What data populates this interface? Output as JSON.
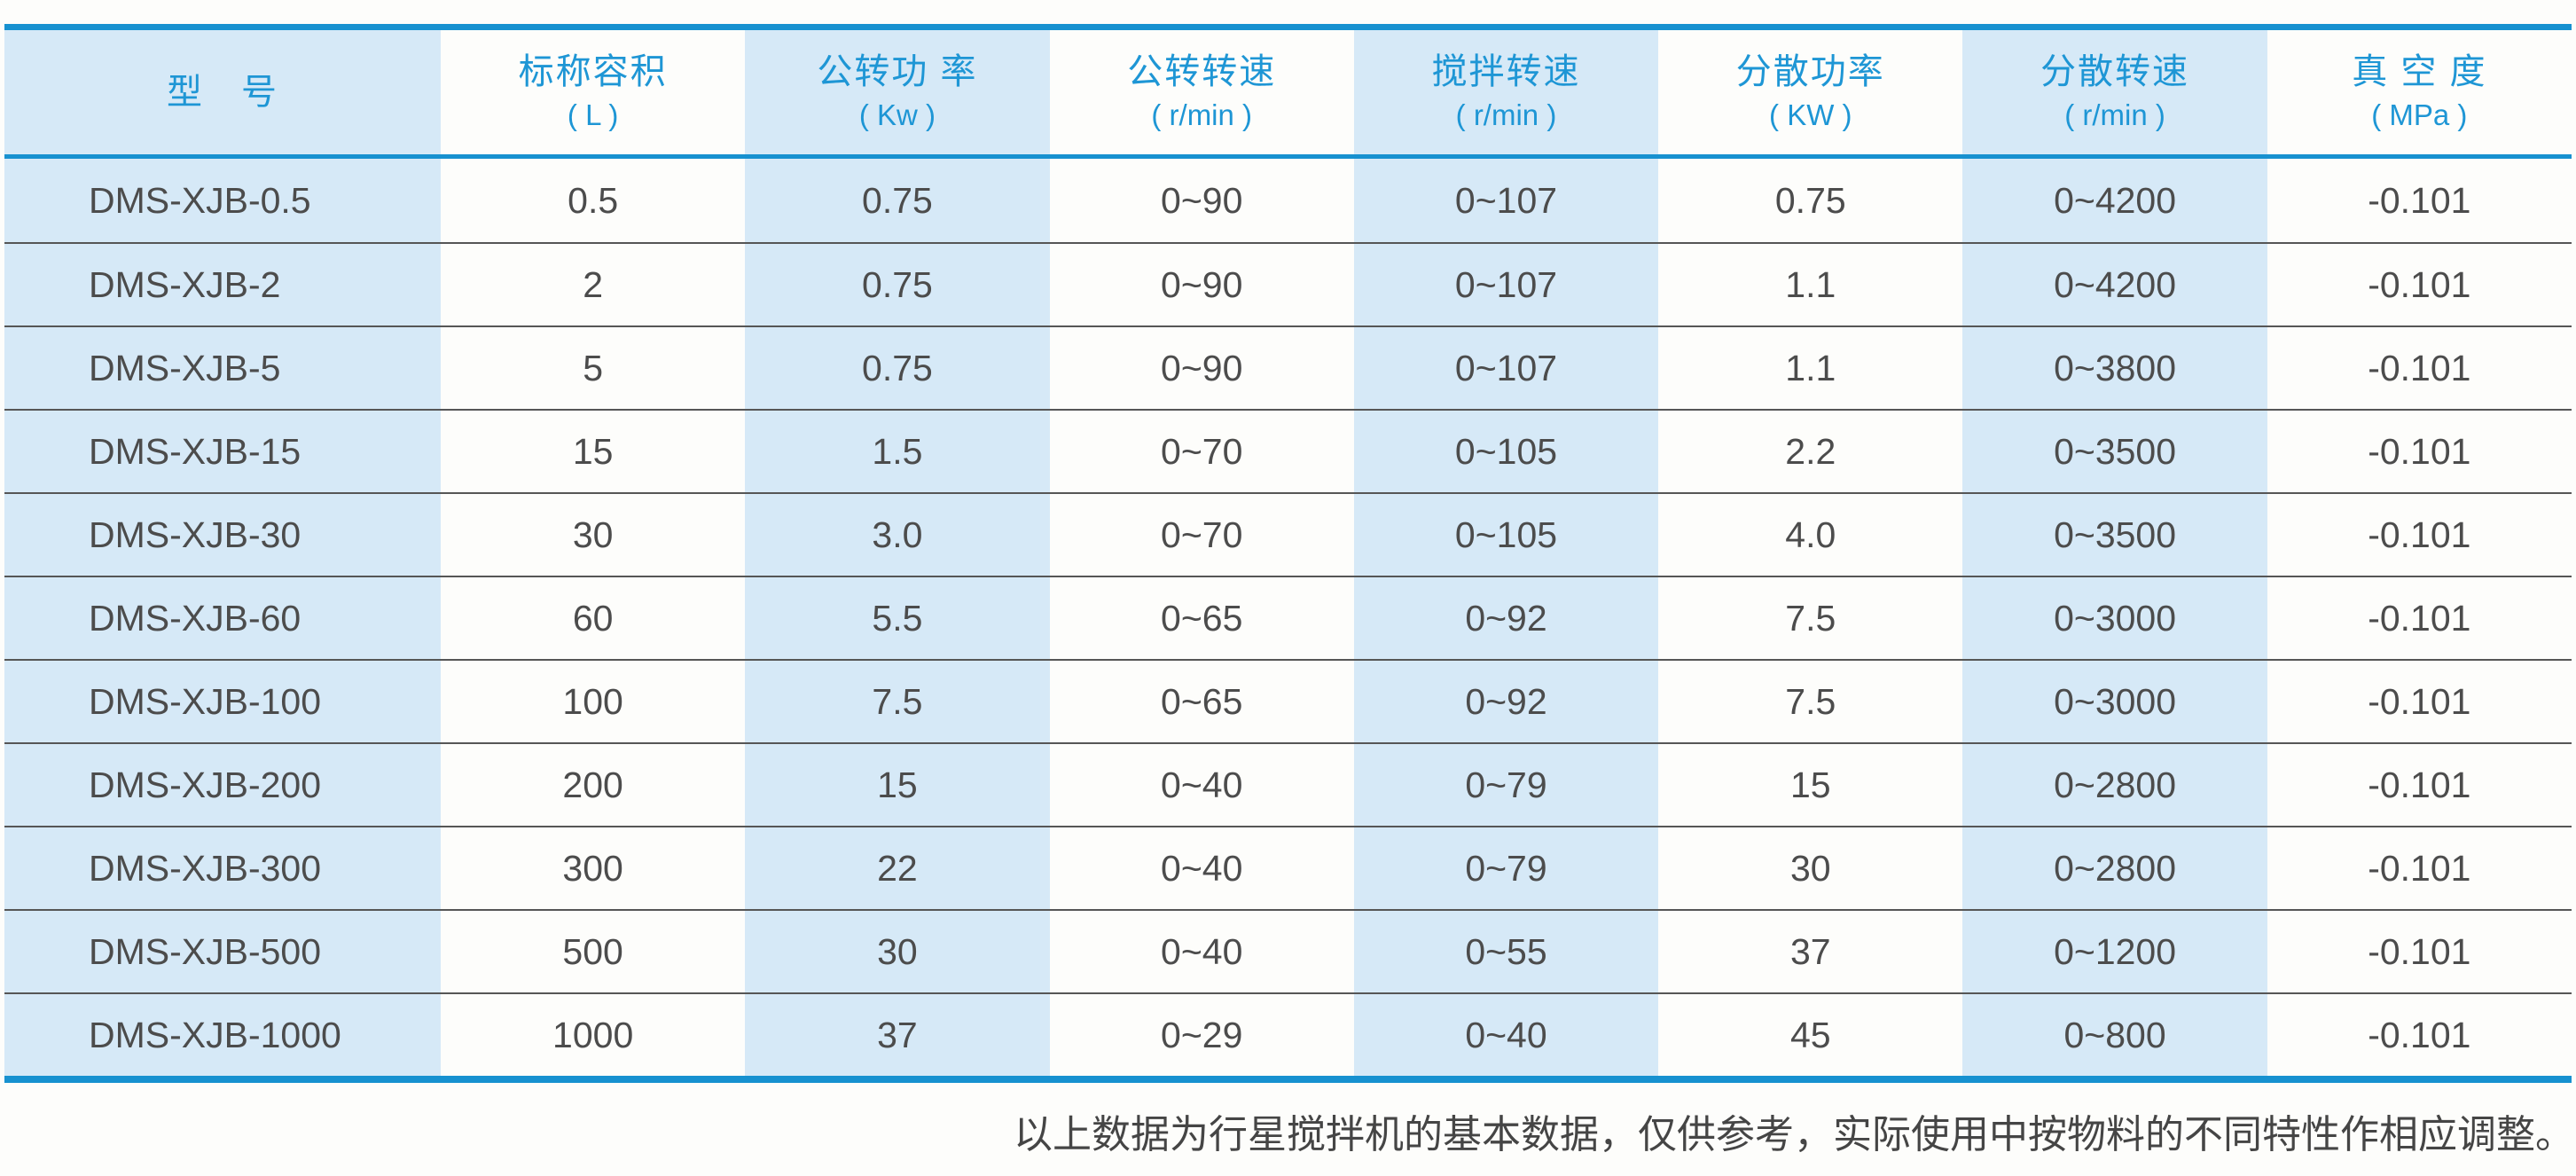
{
  "colors": {
    "accent_blue": "#1791d0",
    "header_text_blue": "#1e96d5",
    "light_blue_cell": "#d6e9f7",
    "body_text": "#4c4c4c",
    "row_divider": "#565656"
  },
  "table": {
    "columns": [
      {
        "title": "型　号",
        "unit": ""
      },
      {
        "title": "标称容积",
        "unit": "( L )"
      },
      {
        "title": "公转功 率",
        "unit": "( Kw )"
      },
      {
        "title": "公转转速",
        "unit": "( r/min )"
      },
      {
        "title": "搅拌转速",
        "unit": "( r/min )"
      },
      {
        "title": "分散功率",
        "unit": "( KW )"
      },
      {
        "title": "分散转速",
        "unit": "( r/min )"
      },
      {
        "title": "真 空 度",
        "unit": "( MPa )"
      }
    ],
    "rows": [
      [
        "DMS-XJB-0.5",
        "0.5",
        "0.75",
        "0~90",
        "0~107",
        "0.75",
        "0~4200",
        "-0.101"
      ],
      [
        "DMS-XJB-2",
        "2",
        "0.75",
        "0~90",
        "0~107",
        "1.1",
        "0~4200",
        "-0.101"
      ],
      [
        "DMS-XJB-5",
        "5",
        "0.75",
        "0~90",
        "0~107",
        "1.1",
        "0~3800",
        "-0.101"
      ],
      [
        "DMS-XJB-15",
        "15",
        "1.5",
        "0~70",
        "0~105",
        "2.2",
        "0~3500",
        "-0.101"
      ],
      [
        "DMS-XJB-30",
        "30",
        "3.0",
        "0~70",
        "0~105",
        "4.0",
        "0~3500",
        "-0.101"
      ],
      [
        "DMS-XJB-60",
        "60",
        "5.5",
        "0~65",
        "0~92",
        "7.5",
        "0~3000",
        "-0.101"
      ],
      [
        "DMS-XJB-100",
        "100",
        "7.5",
        "0~65",
        "0~92",
        "7.5",
        "0~3000",
        "-0.101"
      ],
      [
        "DMS-XJB-200",
        "200",
        "15",
        "0~40",
        "0~79",
        "15",
        "0~2800",
        "-0.101"
      ],
      [
        "DMS-XJB-300",
        "300",
        "22",
        "0~40",
        "0~79",
        "30",
        "0~2800",
        "-0.101"
      ],
      [
        "DMS-XJB-500",
        "500",
        "30",
        "0~40",
        "0~55",
        "37",
        "0~1200",
        "-0.101"
      ],
      [
        "DMS-XJB-1000",
        "1000",
        "37",
        "0~29",
        "0~40",
        "45",
        "0~800",
        "-0.101"
      ]
    ]
  },
  "footnote": "以上数据为行星搅拌机的基本数据，仅供参考，实际使用中按物料的不同特性作相应调整。"
}
